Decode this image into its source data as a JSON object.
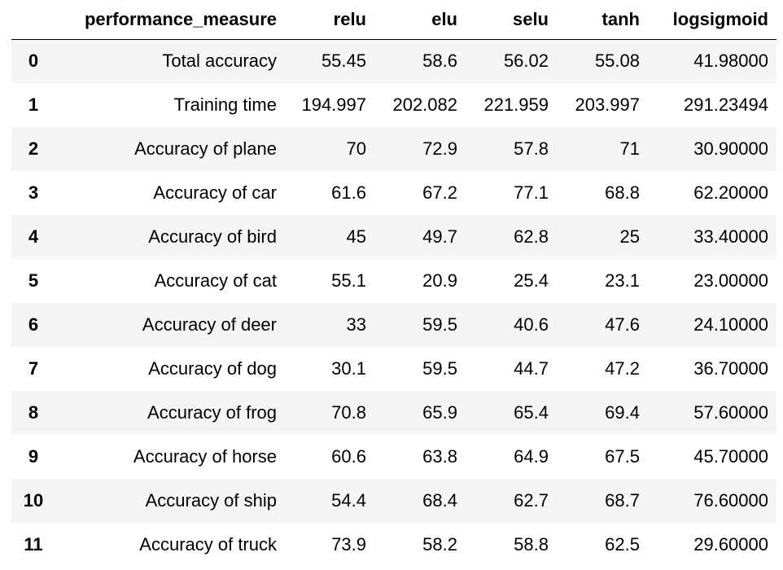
{
  "table": {
    "index_header": "",
    "columns": [
      "performance_measure",
      "relu",
      "elu",
      "selu",
      "tanh",
      "logsigmoid"
    ],
    "rows": [
      {
        "index": "0",
        "cells": [
          "Total accuracy",
          "55.45",
          "58.6",
          "56.02",
          "55.08",
          "41.98000"
        ]
      },
      {
        "index": "1",
        "cells": [
          "Training time",
          "194.997",
          "202.082",
          "221.959",
          "203.997",
          "291.23494"
        ]
      },
      {
        "index": "2",
        "cells": [
          "Accuracy of plane",
          "70",
          "72.9",
          "57.8",
          "71",
          "30.90000"
        ]
      },
      {
        "index": "3",
        "cells": [
          "Accuracy of car",
          "61.6",
          "67.2",
          "77.1",
          "68.8",
          "62.20000"
        ]
      },
      {
        "index": "4",
        "cells": [
          "Accuracy of bird",
          "45",
          "49.7",
          "62.8",
          "25",
          "33.40000"
        ]
      },
      {
        "index": "5",
        "cells": [
          "Accuracy of cat",
          "55.1",
          "20.9",
          "25.4",
          "23.1",
          "23.00000"
        ]
      },
      {
        "index": "6",
        "cells": [
          "Accuracy of deer",
          "33",
          "59.5",
          "40.6",
          "47.6",
          "24.10000"
        ]
      },
      {
        "index": "7",
        "cells": [
          "Accuracy of dog",
          "30.1",
          "59.5",
          "44.7",
          "47.2",
          "36.70000"
        ]
      },
      {
        "index": "8",
        "cells": [
          "Accuracy of frog",
          "70.8",
          "65.9",
          "65.4",
          "69.4",
          "57.60000"
        ]
      },
      {
        "index": "9",
        "cells": [
          "Accuracy of horse",
          "60.6",
          "63.8",
          "64.9",
          "67.5",
          "45.70000"
        ]
      },
      {
        "index": "10",
        "cells": [
          "Accuracy of ship",
          "54.4",
          "68.4",
          "62.7",
          "68.7",
          "76.60000"
        ]
      },
      {
        "index": "11",
        "cells": [
          "Accuracy of truck",
          "73.9",
          "58.2",
          "58.8",
          "62.5",
          "29.60000"
        ]
      }
    ]
  },
  "colors": {
    "stripe": "#f5f5f5",
    "background": "#ffffff",
    "text": "#000000",
    "header_rule": "#000000"
  }
}
